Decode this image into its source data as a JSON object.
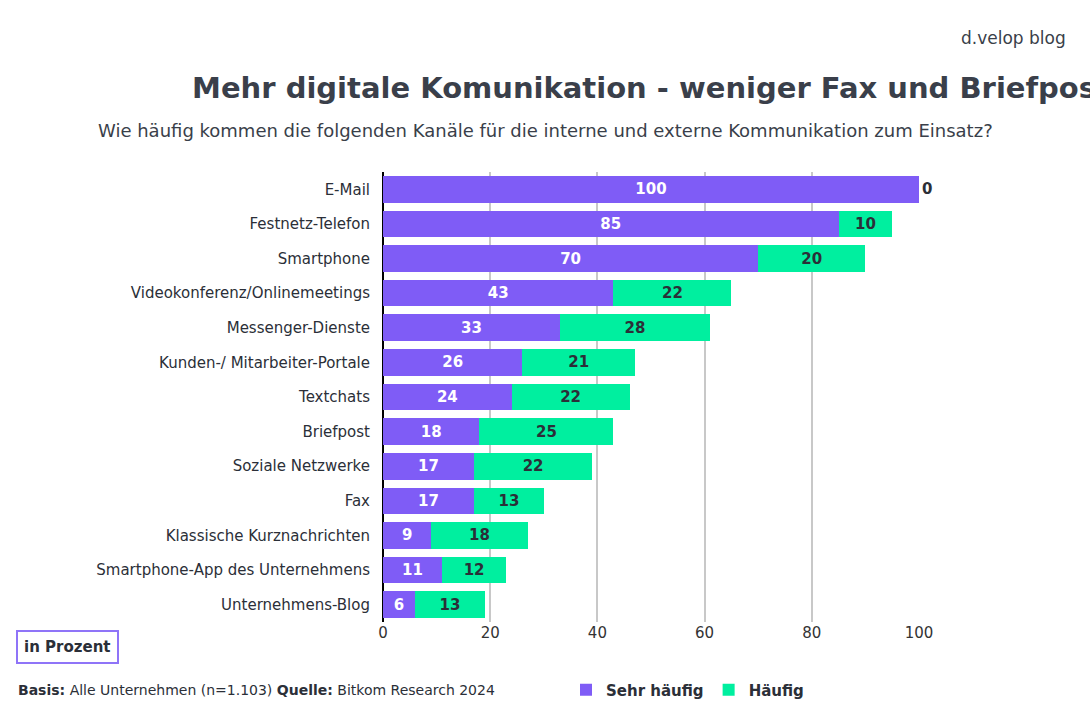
{
  "chart_data": {
    "type": "bar",
    "title": "Mehr digitale Komunikation - weniger Fax und Briefpost",
    "subtitle": "Wie häufig kommen die folgenden Kanäle für die interne und externe Kommunikation zum Einsatz?",
    "unit_label": "in Prozent",
    "footnote": [
      {
        "label": "Basis:",
        "text": "Alle Unternehmen (n=1.103)"
      },
      {
        "label": "Quelle:",
        "text": "Bitkom Research 2024"
      }
    ],
    "brand": "d.velop blog",
    "orientation": "horizontal",
    "stacked": true,
    "data_labels": true,
    "grid": true,
    "legend": "bottom",
    "categories": [
      "E-Mail",
      "Festnetz-Telefon",
      "Smartphone",
      "Videokonferenz/Onlinemeetings",
      "Messenger-Dienste",
      "Kunden-/ Mitarbeiter-Portale",
      "Textchats",
      "Briefpost",
      "Soziale Netzwerke",
      "Fax",
      "Klassische Kurznachrichten",
      "Smartphone-App des Unternehmens",
      "Unternehmens-Blog"
    ],
    "series": [
      {
        "name": "Sehr häufig",
        "color": "#7f5cf6",
        "values": [
          100,
          85,
          70,
          43,
          33,
          26,
          24,
          18,
          17,
          17,
          9,
          11,
          6
        ]
      },
      {
        "name": "Häufig",
        "color": "#00ef9f",
        "values": [
          0,
          10,
          20,
          22,
          28,
          21,
          22,
          25,
          22,
          13,
          18,
          12,
          13
        ]
      }
    ],
    "xlim": [
      0,
      100
    ],
    "xticks": [
      0,
      20,
      40,
      60,
      80,
      100
    ]
  }
}
